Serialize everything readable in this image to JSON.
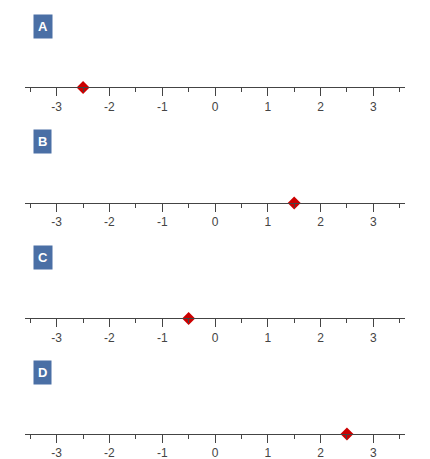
{
  "chart_data": [
    {
      "type": "scatter",
      "title": "A",
      "x": [
        -2.5
      ],
      "color": "#cc0000",
      "marker": "diamond",
      "xlim": [
        -3.6,
        3.6
      ],
      "xticks": [
        -3,
        -2,
        -1,
        0,
        1,
        2,
        3
      ],
      "tick_labels": "x",
      "grid": false
    },
    {
      "type": "scatter",
      "title": "B",
      "x": [
        1.5
      ],
      "color": "#cc0000",
      "marker": "diamond",
      "xlim": [
        -3.6,
        3.6
      ],
      "xticks": [
        -3,
        -2,
        -1,
        0,
        1,
        2,
        3
      ],
      "tick_labels": "x",
      "grid": false
    },
    {
      "type": "scatter",
      "title": "C",
      "x": [
        -0.5
      ],
      "color": "#cc0000",
      "marker": "diamond",
      "xlim": [
        -3.6,
        3.6
      ],
      "xticks": [
        -3,
        -2,
        -1,
        0,
        1,
        2,
        3
      ],
      "tick_labels": "x",
      "grid": false
    },
    {
      "type": "scatter",
      "title": "D",
      "x": [
        2.5
      ],
      "color": "#cc0000",
      "marker": "diamond",
      "xlim": [
        -3.6,
        3.6
      ],
      "xticks": [
        -3,
        -2,
        -1,
        0,
        1,
        2,
        3
      ],
      "tick_labels": "x",
      "grid": false
    }
  ]
}
